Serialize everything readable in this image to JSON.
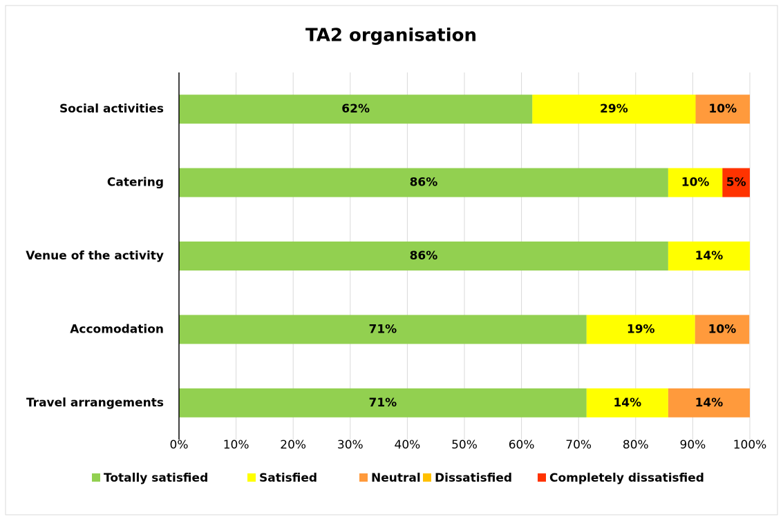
{
  "chart_data": {
    "type": "stacked-barh",
    "title": "TA2 organisation",
    "categories": [
      "Social activities",
      "Catering",
      "Venue of the activity",
      "Accomodation",
      "Travel arrangements"
    ],
    "series": [
      {
        "name": "Totally satisfied",
        "color": "#92d050",
        "values": [
          61.9,
          85.7,
          85.7,
          71.4,
          71.4
        ],
        "value_labels": [
          "62%",
          "86%",
          "86%",
          "71%",
          "71%"
        ]
      },
      {
        "name": "Satisfied",
        "color": "#ffff00",
        "values": [
          28.6,
          9.5,
          14.3,
          19.0,
          14.3
        ],
        "value_labels": [
          "29%",
          "10%",
          "14%",
          "19%",
          "14%"
        ]
      },
      {
        "name": "Neutral",
        "color": "#ff9a3c",
        "values": [
          9.5,
          null,
          null,
          9.5,
          14.3
        ],
        "value_labels": [
          "10%",
          null,
          null,
          "10%",
          "14%"
        ]
      },
      {
        "name": "Dissatisfied",
        "color": "#ffc000",
        "values": [
          null,
          null,
          null,
          null,
          null
        ],
        "value_labels": [
          null,
          null,
          null,
          null,
          null
        ]
      },
      {
        "name": "Completely dissatisfied",
        "color": "#ff3300",
        "values": [
          null,
          4.8,
          null,
          null,
          null
        ],
        "value_labels": [
          null,
          "5%",
          null,
          null,
          null
        ]
      }
    ],
    "xlim": [
      0,
      100
    ],
    "xticks": [
      {
        "value": 0,
        "label": "0%"
      },
      {
        "value": 10,
        "label": "10%"
      },
      {
        "value": 20,
        "label": "20%"
      },
      {
        "value": 30,
        "label": "30%"
      },
      {
        "value": 40,
        "label": "40%"
      },
      {
        "value": 50,
        "label": "50%"
      },
      {
        "value": 60,
        "label": "60%"
      },
      {
        "value": 70,
        "label": "70%"
      },
      {
        "value": 80,
        "label": "80%"
      },
      {
        "value": 90,
        "label": "90%"
      },
      {
        "value": 100,
        "label": "100%"
      }
    ],
    "grid": true,
    "legend": "bottom"
  }
}
